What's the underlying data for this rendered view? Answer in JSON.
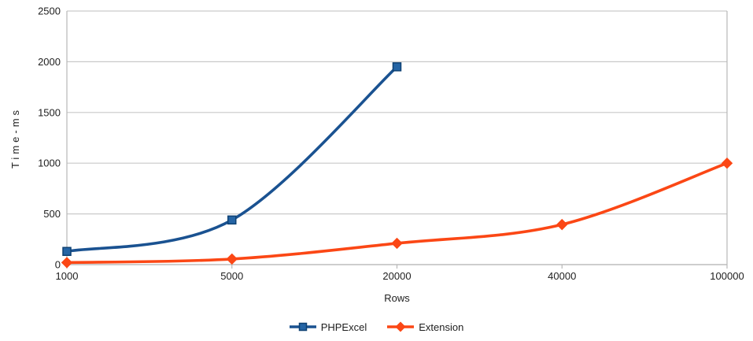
{
  "chart_data": {
    "type": "line",
    "title": "",
    "xlabel": "Rows",
    "ylabel": "Time-ms",
    "categories": [
      "1000",
      "5000",
      "20000",
      "40000",
      "100000"
    ],
    "ylim": [
      0,
      2500
    ],
    "yticks": [
      0,
      500,
      1000,
      1500,
      2000,
      2500
    ],
    "grid": "horizontal",
    "smooth_lines": true,
    "legend_position": "bottom-center",
    "series": [
      {
        "name": "PHPExcel",
        "marker": "square",
        "color": "#1A5291",
        "marker_fill": "#2565A5",
        "marker_stroke": "#0E4173",
        "values": [
          130,
          440,
          1950,
          null,
          null
        ]
      },
      {
        "name": "Extension",
        "marker": "diamond",
        "color": "#FB4715",
        "marker_fill": "#FB4715",
        "marker_stroke": "#FB4715",
        "values": [
          20,
          55,
          210,
          395,
          1000
        ]
      }
    ]
  },
  "styles": {
    "grid_color": "#C9C9C9",
    "axis_color": "#B7B7B7",
    "text_color": "#1E1E1E",
    "background": "#FFFFFF"
  }
}
